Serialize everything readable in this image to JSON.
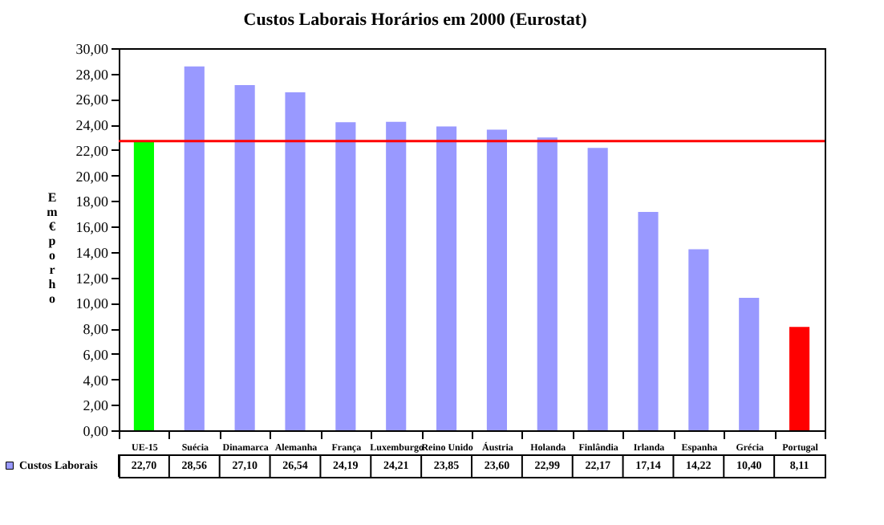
{
  "chart_data": {
    "type": "bar",
    "title": "Custos Laborais Horários em 2000 (Eurostat)",
    "ylabel": "Em € por ho",
    "categories": [
      "UE-15",
      "Suécia",
      "Dinamarca",
      "Alemanha",
      "França",
      "Luxemburgo",
      "Reino Unido",
      "Áustria",
      "Holanda",
      "Finlândia",
      "Irlanda",
      "Espanha",
      "Grécia",
      "Portugal"
    ],
    "series": [
      {
        "name": "Custos Laborais",
        "color": "#9999ff",
        "colors": [
          "#00ff00",
          "#9999ff",
          "#9999ff",
          "#9999ff",
          "#9999ff",
          "#9999ff",
          "#9999ff",
          "#9999ff",
          "#9999ff",
          "#9999ff",
          "#9999ff",
          "#9999ff",
          "#9999ff",
          "#ff0000"
        ],
        "values": [
          22.7,
          28.56,
          27.1,
          26.54,
          24.19,
          24.21,
          23.85,
          23.6,
          22.99,
          22.17,
          17.14,
          14.22,
          10.4,
          8.11
        ],
        "value_labels": [
          "22,70",
          "28,56",
          "27,10",
          "26,54",
          "24,19",
          "24,21",
          "23,85",
          "23,60",
          "22,99",
          "22,17",
          "17,14",
          "14,22",
          "10,40",
          "8,11"
        ]
      }
    ],
    "ylim": [
      0,
      30
    ],
    "yticks": [
      {
        "value": 0,
        "label": "0,00"
      },
      {
        "value": 2,
        "label": "2,00"
      },
      {
        "value": 4,
        "label": "4,00"
      },
      {
        "value": 6,
        "label": "6,00"
      },
      {
        "value": 8,
        "label": "8,00"
      },
      {
        "value": 10,
        "label": "10,00"
      },
      {
        "value": 12,
        "label": "12,00"
      },
      {
        "value": 14,
        "label": "14,00"
      },
      {
        "value": 16,
        "label": "16,00"
      },
      {
        "value": 18,
        "label": "18,00"
      },
      {
        "value": 20,
        "label": "20,00"
      },
      {
        "value": 22,
        "label": "22,00"
      },
      {
        "value": 24,
        "label": "24,00"
      },
      {
        "value": 26,
        "label": "26,00"
      },
      {
        "value": 28,
        "label": "28,00"
      },
      {
        "value": 30,
        "label": "30,00"
      }
    ],
    "ref_lines": [
      {
        "axis": "y",
        "value": 22.7,
        "color": "#ff0000"
      }
    ],
    "legend": "bottom left"
  }
}
